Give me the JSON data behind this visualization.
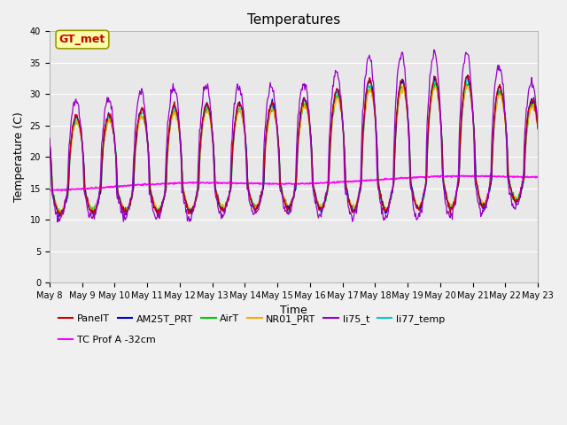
{
  "title": "Temperatures",
  "xlabel": "Time",
  "ylabel": "Temperature (C)",
  "ylim": [
    0,
    40
  ],
  "yticks": [
    0,
    5,
    10,
    15,
    20,
    25,
    30,
    35,
    40
  ],
  "n_days": 15,
  "x_tick_labels": [
    "May 8",
    "May 9",
    "May 10",
    "May 11",
    "May 12",
    "May 13",
    "May 14",
    "May 15",
    "May 16",
    "May 17",
    "May 18",
    "May 19",
    "May 20",
    "May 21",
    "May 22",
    "May 23"
  ],
  "series_colors": {
    "PanelT": "#cc0000",
    "AM25T_PRT": "#0000cc",
    "AirT": "#00cc00",
    "NR01_PRT": "#ffaa00",
    "li75_t": "#9900cc",
    "li77_temp": "#00cccc",
    "TC Prof A -32cm": "#ff00ff"
  },
  "annotation_text": "GT_met",
  "annotation_bg": "#ffffaa",
  "annotation_border": "#999900",
  "annotation_text_color": "#cc0000",
  "plot_bg_color": "#e8e8e8",
  "fig_bg_color": "#f0f0f0",
  "grid_color": "#ffffff",
  "title_fontsize": 11,
  "axis_fontsize": 9,
  "tick_fontsize": 7,
  "legend_fontsize": 8
}
